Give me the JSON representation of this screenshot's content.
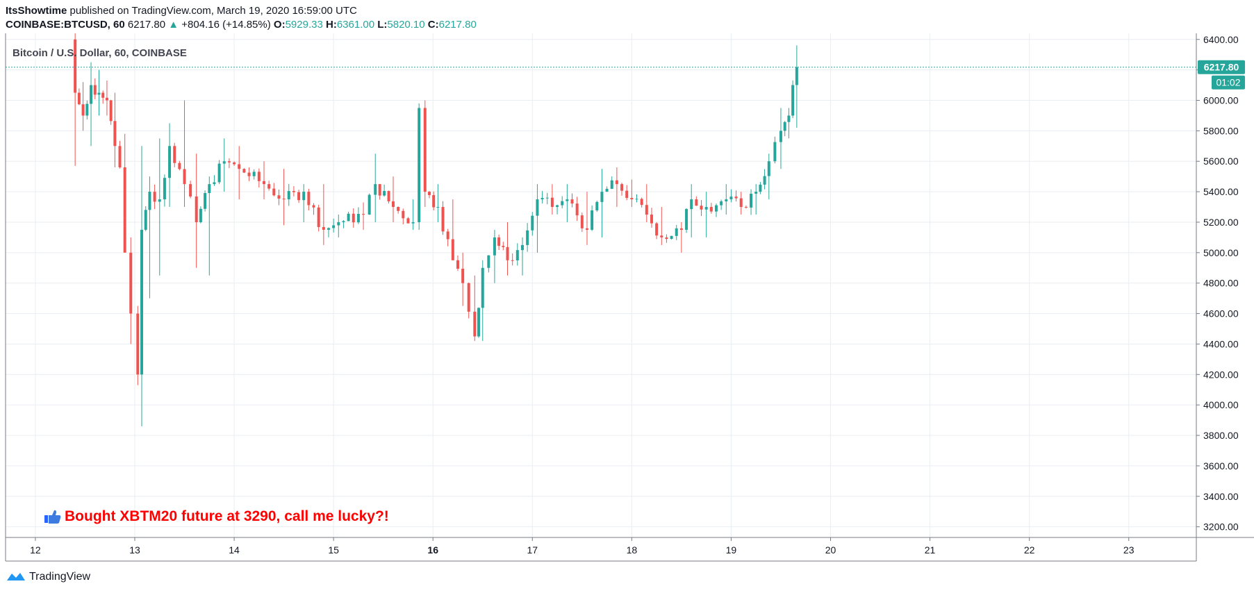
{
  "header": {
    "author": "ItsShowtime",
    "published_text": "published on TradingView.com, March 19, 2020 16:59:00 UTC",
    "symbol": "COINBASE:BTCUSD, 60",
    "last": "6217.80",
    "change_arrow": "▲",
    "change": "+804.16 (+14.85%)",
    "o_label": "O:",
    "o_value": "5929.33",
    "h_label": "H:",
    "h_value": "6361.00",
    "l_label": "L:",
    "l_value": "5820.10",
    "c_label": "C:",
    "c_value": "6217.80"
  },
  "chart_title": "Bitcoin / U.S. Dollar, 60, COINBASE",
  "annotation": {
    "icon": "thumbs-up-icon",
    "text": "Bought XBTM20 future at 3290, call me lucky?!",
    "color": "#ff0000"
  },
  "price_badge": "6217.80",
  "timer_badge": "01:02",
  "footer": {
    "brand": "TradingView",
    "logo": "tradingview-logo-icon"
  },
  "colors": {
    "up": "#26a69a",
    "down": "#ef5350",
    "grid": "#e9eef2",
    "accent": "#26a69a"
  },
  "chart_data": {
    "type": "candlestick",
    "symbol": "COINBASE:BTCUSD",
    "interval": "60",
    "y_ticks": [
      "3200.00",
      "3400.00",
      "3600.00",
      "3800.00",
      "4000.00",
      "4200.00",
      "4400.00",
      "4600.00",
      "4800.00",
      "5000.00",
      "5200.00",
      "5400.00",
      "5600.00",
      "5800.00",
      "6000.00",
      "6200.00",
      "6400.00"
    ],
    "ylim": [
      3130,
      6440
    ],
    "x_ticks": [
      "12",
      "13",
      "14",
      "15",
      "16",
      "17",
      "18",
      "19",
      "20",
      "21",
      "22",
      "23"
    ],
    "x_tick_days": [
      12,
      13,
      14,
      15,
      16,
      17,
      18,
      19,
      20,
      21,
      22,
      23
    ],
    "xlim": [
      11.7,
      23.68
    ],
    "last_price": 6217.8,
    "grid": true,
    "ohlc_keypoints": [
      [
        12.4,
        6400,
        6450,
        5570,
        6050
      ],
      [
        12.48,
        6050,
        6120,
        5800,
        5900
      ],
      [
        12.56,
        5900,
        6250,
        5700,
        6100
      ],
      [
        12.64,
        6100,
        6200,
        5900,
        6050
      ],
      [
        12.72,
        6050,
        6130,
        5900,
        6000
      ],
      [
        12.8,
        6000,
        6050,
        5560,
        5700
      ],
      [
        12.9,
        5700,
        5780,
        5560,
        5000
      ],
      [
        12.96,
        5000,
        5100,
        4400,
        4600
      ],
      [
        13.03,
        4600,
        4650,
        4130,
        4200
      ],
      [
        13.07,
        4200,
        5700,
        3860,
        5150
      ],
      [
        13.15,
        5150,
        5500,
        4700,
        5400
      ],
      [
        13.25,
        5400,
        5750,
        4850,
        5350
      ],
      [
        13.35,
        5350,
        5850,
        5300,
        5700
      ],
      [
        13.5,
        5700,
        6000,
        5300,
        5450
      ],
      [
        13.62,
        5450,
        5650,
        4900,
        5200
      ],
      [
        13.75,
        5200,
        5500,
        4850,
        5450
      ],
      [
        13.9,
        5450,
        5750,
        5400,
        5600
      ],
      [
        14.05,
        5600,
        5700,
        5350,
        5550
      ],
      [
        14.3,
        5550,
        5600,
        5350,
        5450
      ],
      [
        14.5,
        5450,
        5550,
        5180,
        5350
      ],
      [
        14.7,
        5350,
        5450,
        5200,
        5400
      ],
      [
        14.9,
        5400,
        5450,
        5050,
        5150
      ],
      [
        15.05,
        5150,
        5250,
        5100,
        5200
      ],
      [
        15.3,
        5200,
        5330,
        5150,
        5250
      ],
      [
        15.42,
        5250,
        5650,
        5200,
        5450
      ],
      [
        15.6,
        5450,
        5500,
        5200,
        5300
      ],
      [
        15.8,
        5300,
        5350,
        5150,
        5200
      ],
      [
        15.86,
        5200,
        5980,
        5150,
        5950
      ],
      [
        15.92,
        5950,
        6000,
        5300,
        5400
      ],
      [
        16.05,
        5400,
        5450,
        5200,
        5300
      ],
      [
        16.2,
        5300,
        5350,
        5050,
        4950
      ],
      [
        16.3,
        4950,
        5000,
        4650,
        4800
      ],
      [
        16.42,
        4800,
        4850,
        4420,
        4450
      ],
      [
        16.5,
        4450,
        4950,
        4420,
        4900
      ],
      [
        16.62,
        4900,
        5150,
        4800,
        5100
      ],
      [
        16.75,
        5100,
        5200,
        4850,
        4950
      ],
      [
        16.9,
        4950,
        5100,
        4850,
        5050
      ],
      [
        17.05,
        5050,
        5450,
        5000,
        5350
      ],
      [
        17.2,
        5350,
        5450,
        5250,
        5300
      ],
      [
        17.35,
        5300,
        5450,
        5200,
        5350
      ],
      [
        17.55,
        5350,
        5400,
        5050,
        5150
      ],
      [
        17.7,
        5150,
        5550,
        5100,
        5400
      ],
      [
        17.85,
        5400,
        5560,
        5300,
        5450
      ],
      [
        18.0,
        5450,
        5480,
        5300,
        5350
      ],
      [
        18.15,
        5350,
        5450,
        5200,
        5250
      ],
      [
        18.3,
        5250,
        5300,
        5050,
        5100
      ],
      [
        18.5,
        5100,
        5200,
        5000,
        5150
      ],
      [
        18.6,
        5150,
        5450,
        5100,
        5350
      ],
      [
        18.75,
        5350,
        5400,
        5100,
        5300
      ],
      [
        18.95,
        5300,
        5450,
        5250,
        5350
      ],
      [
        19.1,
        5350,
        5400,
        5250,
        5300
      ],
      [
        19.25,
        5300,
        5450,
        5250,
        5400
      ],
      [
        19.38,
        5400,
        5650,
        5350,
        5600
      ],
      [
        19.5,
        5600,
        5950,
        5550,
        5800
      ],
      [
        19.58,
        5800,
        5950,
        5750,
        5900
      ],
      [
        19.66,
        5900,
        6361,
        5820,
        6218
      ]
    ]
  }
}
